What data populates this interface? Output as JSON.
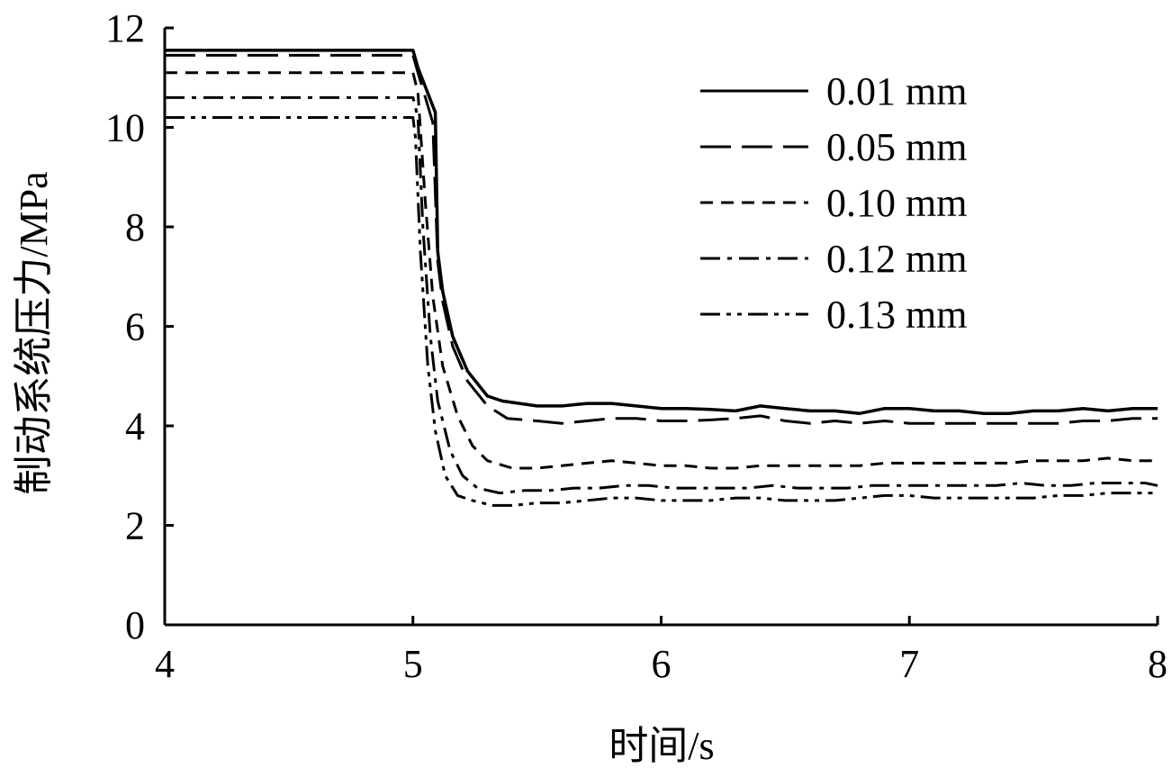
{
  "chart_data": {
    "type": "line",
    "title": "",
    "xlabel": "时间/s",
    "ylabel": "制动系统压力/MPa",
    "xlim": [
      4,
      8
    ],
    "ylim": [
      0,
      12
    ],
    "xticks": [
      "4",
      "5",
      "6",
      "7",
      "8"
    ],
    "yticks": [
      "0",
      "2",
      "4",
      "6",
      "8",
      "10",
      "12"
    ],
    "grid": false,
    "legend_position": "top-right",
    "line_color": "#000000",
    "series": [
      {
        "name": "0.01 mm",
        "style": "solid",
        "x": [
          4.0,
          5.0,
          5.02,
          5.09,
          5.1,
          5.12,
          5.16,
          5.22,
          5.3,
          5.36,
          5.5,
          5.6,
          5.7,
          5.8,
          5.9,
          6.0,
          6.1,
          6.2,
          6.3,
          6.4,
          6.5,
          6.6,
          6.7,
          6.8,
          6.9,
          7.0,
          7.1,
          7.2,
          7.3,
          7.4,
          7.5,
          7.6,
          7.7,
          7.8,
          7.9,
          8.0
        ],
        "values": [
          11.55,
          11.55,
          11.2,
          10.3,
          7.5,
          6.7,
          5.8,
          5.1,
          4.6,
          4.5,
          4.4,
          4.4,
          4.45,
          4.45,
          4.4,
          4.35,
          4.35,
          4.33,
          4.3,
          4.4,
          4.35,
          4.3,
          4.3,
          4.25,
          4.35,
          4.35,
          4.3,
          4.3,
          4.25,
          4.25,
          4.3,
          4.3,
          4.35,
          4.3,
          4.35,
          4.35
        ]
      },
      {
        "name": "0.05 mm",
        "style": "dash",
        "x": [
          4.0,
          5.0,
          5.02,
          5.08,
          5.1,
          5.12,
          5.16,
          5.22,
          5.3,
          5.38,
          5.5,
          5.6,
          5.7,
          5.8,
          5.9,
          6.0,
          6.1,
          6.2,
          6.3,
          6.4,
          6.5,
          6.6,
          6.7,
          6.8,
          6.9,
          7.0,
          7.1,
          7.2,
          7.3,
          7.4,
          7.5,
          7.6,
          7.7,
          7.8,
          7.9,
          8.0
        ],
        "values": [
          11.45,
          11.45,
          11.1,
          10.1,
          7.3,
          6.5,
          5.6,
          4.9,
          4.4,
          4.15,
          4.1,
          4.05,
          4.1,
          4.15,
          4.15,
          4.1,
          4.1,
          4.12,
          4.15,
          4.2,
          4.1,
          4.05,
          4.1,
          4.05,
          4.1,
          4.05,
          4.05,
          4.05,
          4.05,
          4.05,
          4.05,
          4.05,
          4.1,
          4.1,
          4.15,
          4.15
        ]
      },
      {
        "name": "0.10 mm",
        "style": "short-dash",
        "x": [
          4.0,
          5.0,
          5.02,
          5.05,
          5.08,
          5.12,
          5.18,
          5.24,
          5.3,
          5.4,
          5.5,
          5.6,
          5.7,
          5.8,
          5.9,
          6.0,
          6.1,
          6.2,
          6.3,
          6.4,
          6.5,
          6.6,
          6.7,
          6.8,
          6.9,
          7.0,
          7.1,
          7.2,
          7.3,
          7.4,
          7.5,
          7.6,
          7.7,
          7.8,
          7.9,
          8.0
        ],
        "values": [
          11.1,
          11.1,
          10.7,
          8.5,
          6.6,
          5.2,
          4.2,
          3.6,
          3.3,
          3.15,
          3.15,
          3.2,
          3.25,
          3.3,
          3.25,
          3.2,
          3.2,
          3.15,
          3.15,
          3.2,
          3.2,
          3.2,
          3.2,
          3.2,
          3.25,
          3.25,
          3.25,
          3.25,
          3.25,
          3.25,
          3.3,
          3.3,
          3.3,
          3.35,
          3.3,
          3.3
        ]
      },
      {
        "name": "0.12 mm",
        "style": "dash-dot",
        "x": [
          4.0,
          5.0,
          5.02,
          5.04,
          5.07,
          5.1,
          5.15,
          5.2,
          5.26,
          5.35,
          5.45,
          5.55,
          5.65,
          5.75,
          5.85,
          5.95,
          6.05,
          6.15,
          6.25,
          6.35,
          6.45,
          6.55,
          6.65,
          6.75,
          6.85,
          6.95,
          7.05,
          7.15,
          7.25,
          7.35,
          7.45,
          7.55,
          7.65,
          7.75,
          7.85,
          7.95,
          8.0
        ],
        "values": [
          10.6,
          10.6,
          10.2,
          8.0,
          5.8,
          4.5,
          3.5,
          3.0,
          2.75,
          2.65,
          2.7,
          2.7,
          2.75,
          2.75,
          2.8,
          2.8,
          2.75,
          2.75,
          2.75,
          2.75,
          2.8,
          2.75,
          2.75,
          2.75,
          2.8,
          2.8,
          2.8,
          2.8,
          2.8,
          2.8,
          2.85,
          2.8,
          2.8,
          2.85,
          2.85,
          2.85,
          2.8
        ]
      },
      {
        "name": "0.13 mm",
        "style": "dash-dot-dot",
        "x": [
          4.0,
          5.0,
          5.01,
          5.03,
          5.06,
          5.09,
          5.13,
          5.18,
          5.24,
          5.32,
          5.4,
          5.5,
          5.6,
          5.7,
          5.8,
          5.9,
          6.0,
          6.1,
          6.2,
          6.3,
          6.4,
          6.5,
          6.6,
          6.7,
          6.8,
          6.9,
          7.0,
          7.1,
          7.2,
          7.3,
          7.4,
          7.5,
          7.6,
          7.7,
          7.8,
          7.9,
          8.0
        ],
        "values": [
          10.2,
          10.2,
          9.8,
          7.5,
          5.2,
          3.9,
          3.0,
          2.6,
          2.5,
          2.4,
          2.4,
          2.45,
          2.45,
          2.5,
          2.55,
          2.55,
          2.5,
          2.5,
          2.5,
          2.55,
          2.55,
          2.5,
          2.5,
          2.5,
          2.55,
          2.6,
          2.6,
          2.55,
          2.55,
          2.55,
          2.55,
          2.55,
          2.6,
          2.6,
          2.65,
          2.65,
          2.65
        ]
      }
    ]
  }
}
